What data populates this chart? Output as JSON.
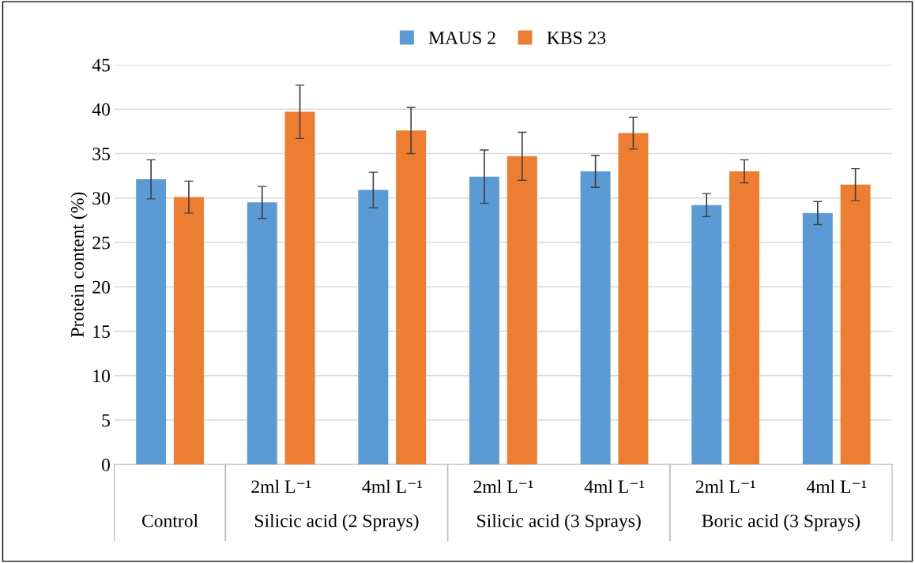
{
  "chart_data": {
    "type": "bar",
    "ylabel": "Protein content (%)",
    "categories": [
      null,
      "2ml L⁻¹",
      "4ml L⁻¹",
      "2ml L⁻¹",
      "4ml L⁻¹",
      "2ml L⁻¹",
      "4ml L⁻¹"
    ],
    "annotations": [
      "Control",
      "Silicic acid (2 Sprays)",
      "Silicic acid (3 Sprays)",
      "Boric acid (3 Sprays)"
    ],
    "series": [
      {
        "name": "MAUS 2",
        "color": "#5b9bd5",
        "values": [
          32.1,
          29.5,
          30.9,
          32.4,
          33.0,
          29.2,
          28.3
        ],
        "errors": [
          2.2,
          1.8,
          2.0,
          3.0,
          1.8,
          1.3,
          1.3
        ]
      },
      {
        "name": "KBS 23",
        "color": "#ed7d31",
        "values": [
          30.1,
          39.7,
          37.6,
          34.7,
          37.3,
          33.0,
          31.5
        ],
        "errors": [
          1.8,
          3.0,
          2.6,
          2.7,
          1.8,
          1.3,
          1.8
        ]
      }
    ],
    "ylim": [
      0,
      45
    ],
    "yticks": [
      0,
      5,
      10,
      15,
      20,
      25,
      30,
      35,
      40,
      45
    ],
    "grid": "y",
    "legend": "top"
  }
}
